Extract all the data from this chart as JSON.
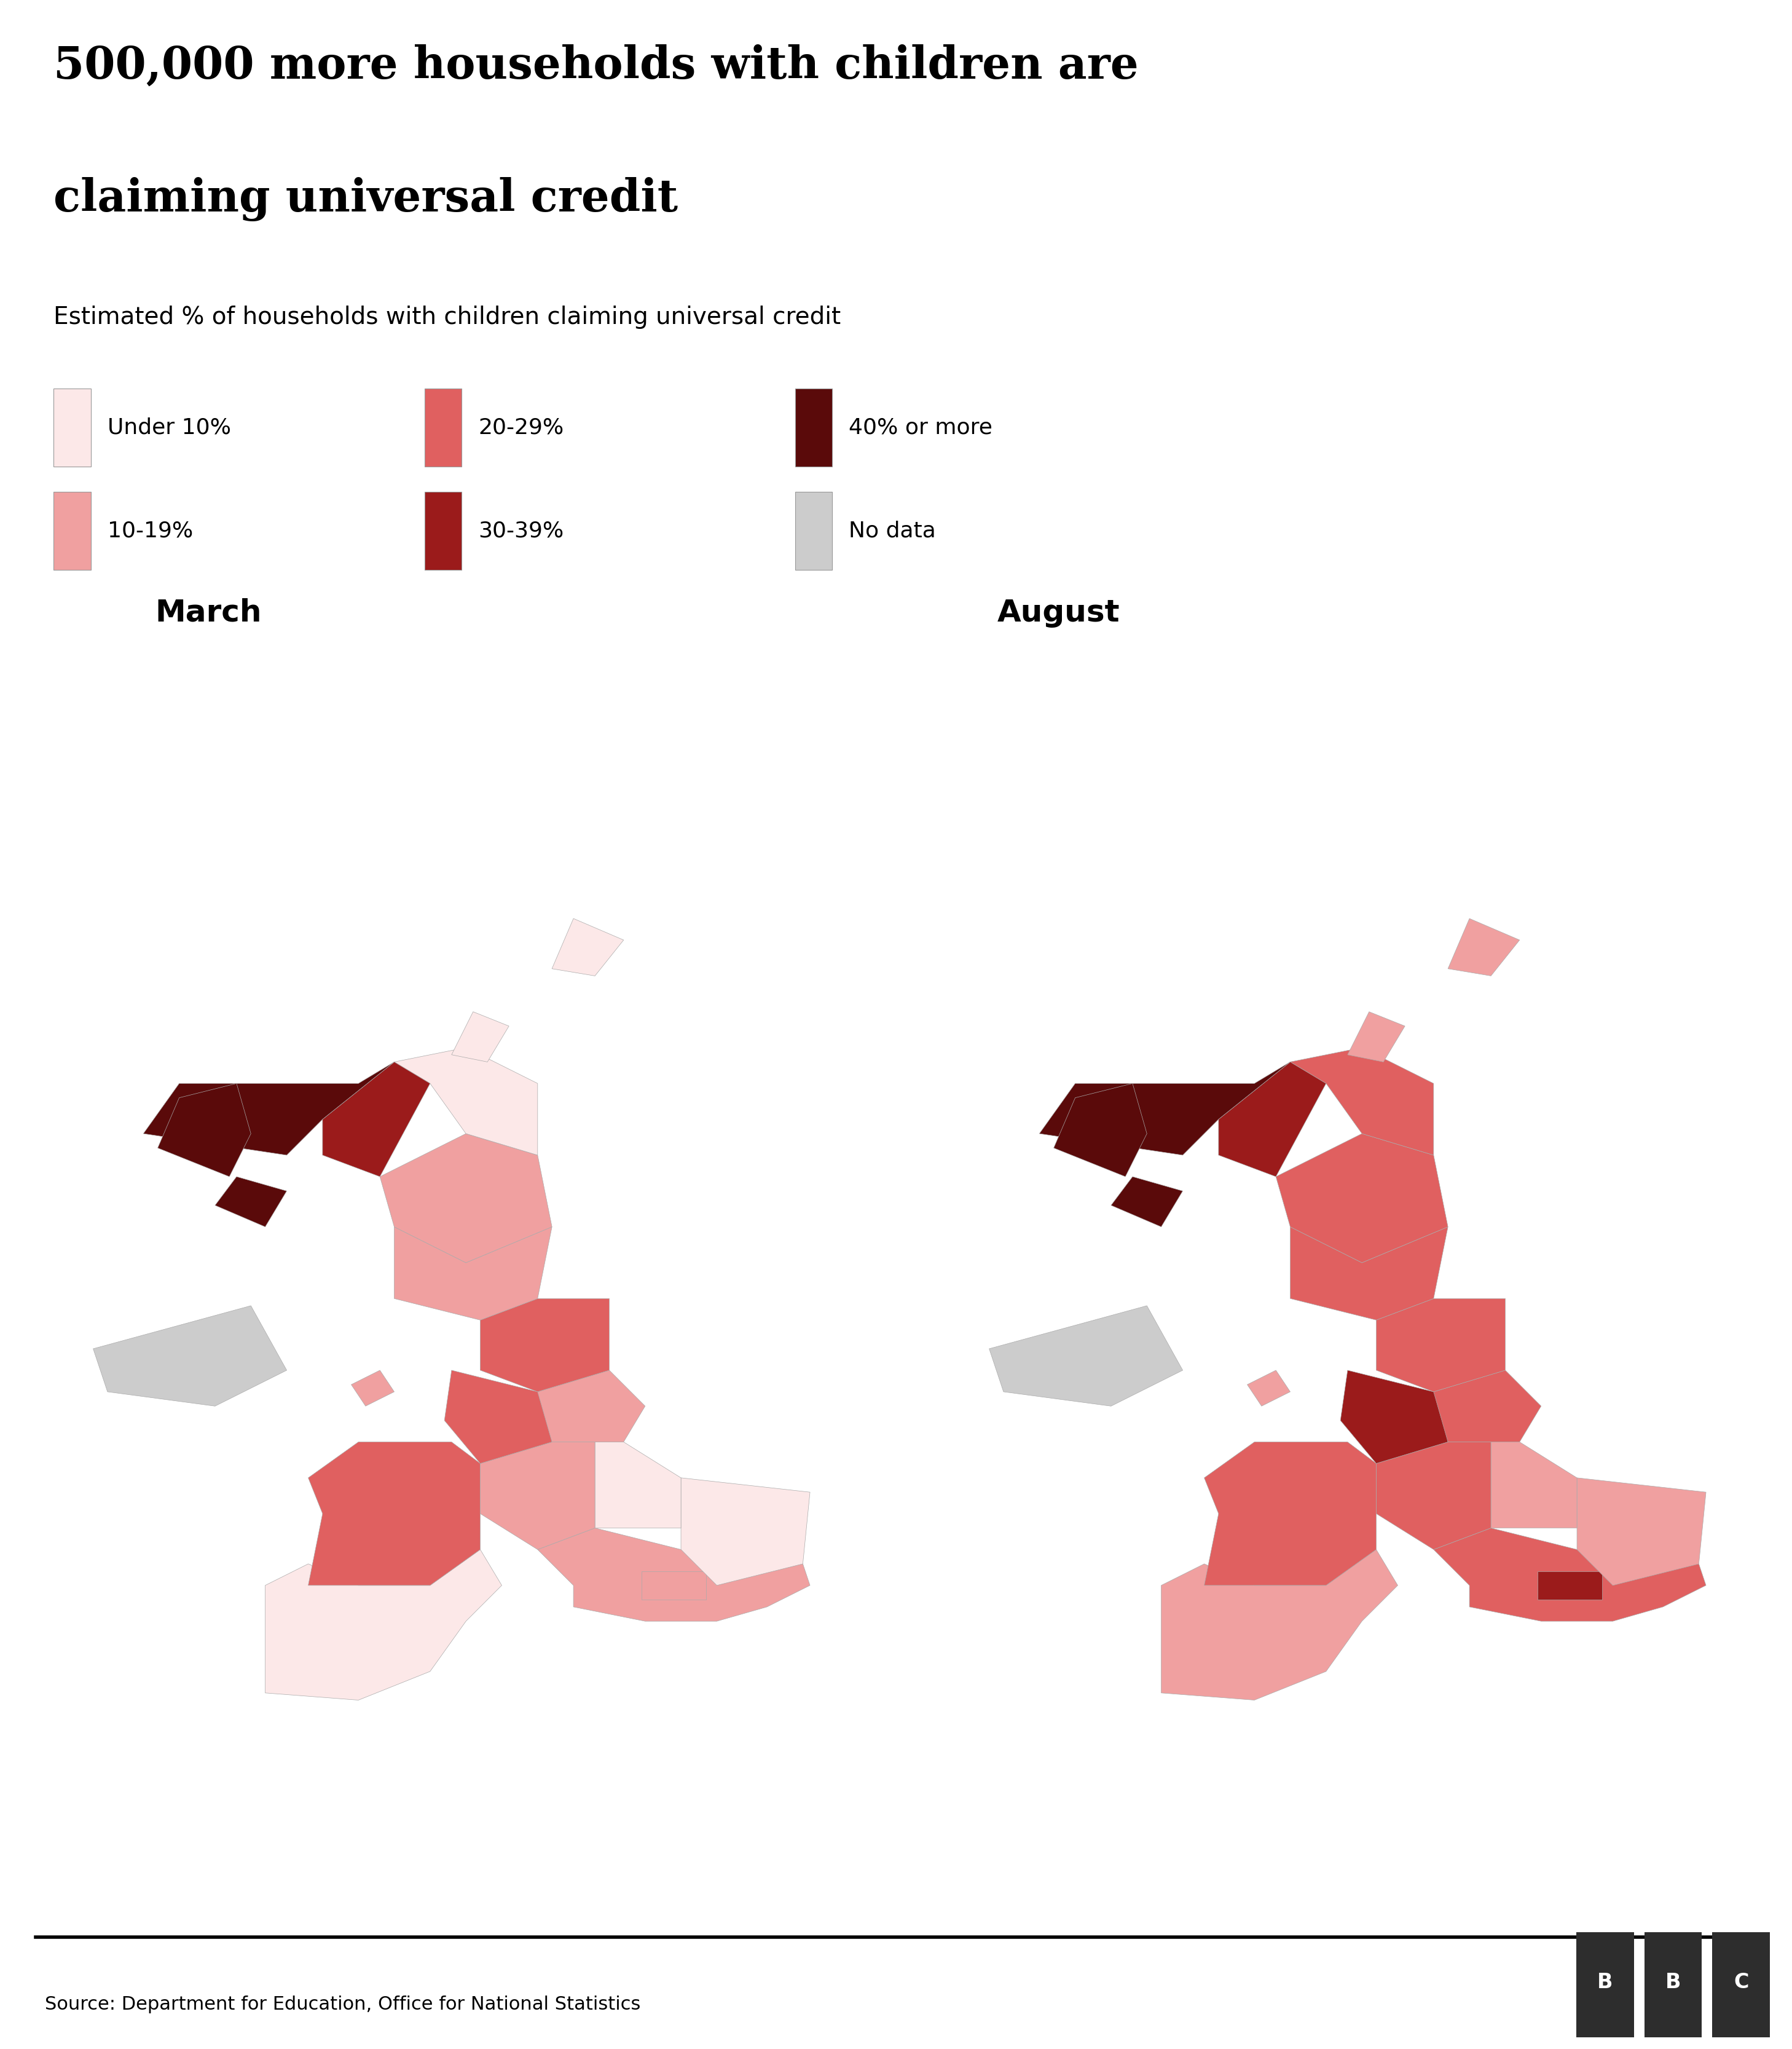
{
  "title_line1": "500,000 more households with children are",
  "title_line2": "claiming universal credit",
  "subtitle": "Estimated % of households with children claiming universal credit",
  "source": "Source: Department for Education, Office for National Statistics",
  "map_labels": [
    "March",
    "August"
  ],
  "legend_items": [
    {
      "label": "Under 10%",
      "color": "#fce8e8"
    },
    {
      "label": "10-19%",
      "color": "#f0a0a0"
    },
    {
      "label": "20-29%",
      "color": "#e06060"
    },
    {
      "label": "30-39%",
      "color": "#9b1b1b"
    },
    {
      "label": "40% or more",
      "color": "#5a0a0a"
    },
    {
      "label": "No data",
      "color": "#cccccc"
    }
  ],
  "colors": {
    "under10": "#fce8e8",
    "10to19": "#f0a0a0",
    "20to29": "#e06060",
    "30to39": "#9b1b1b",
    "40plus": "#5a0a0a",
    "nodata": "#cccccc",
    "background": "#ffffff",
    "title_color": "#000000",
    "bbc_bg": "#2d2d2d",
    "bbc_text": "#ffffff"
  },
  "figure_width": 29.16,
  "figure_height": 33.33,
  "title_fontsize": 52,
  "subtitle_fontsize": 28,
  "legend_fontsize": 26,
  "map_label_fontsize": 36,
  "source_fontsize": 22
}
